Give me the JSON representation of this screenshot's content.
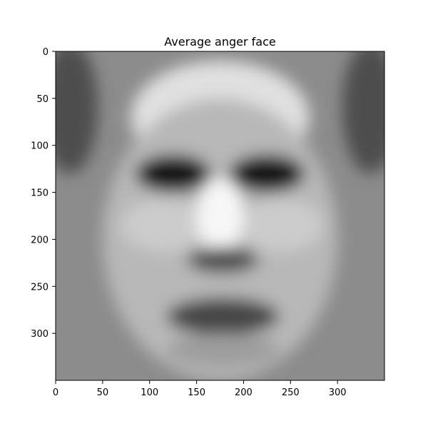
{
  "chart_data": {
    "type": "heatmap",
    "title": "Average anger face",
    "xlabel": "",
    "ylabel": "",
    "colormap": "gray",
    "xlim": [
      0,
      350
    ],
    "ylim": [
      350,
      0
    ],
    "x_ticks": [
      0,
      50,
      100,
      150,
      200,
      250,
      300
    ],
    "y_ticks": [
      0,
      50,
      100,
      150,
      200,
      250,
      300
    ],
    "grid": false,
    "image": {
      "width": 350,
      "height": 350,
      "background_intensity": 0.55,
      "features": [
        {
          "name": "forehead",
          "shape": "ellipse",
          "cx": 175,
          "cy": 70,
          "rx": 95,
          "ry": 60,
          "intensity": 0.88
        },
        {
          "name": "face",
          "shape": "ellipse",
          "cx": 175,
          "cy": 200,
          "rx": 125,
          "ry": 150,
          "intensity": 0.72
        },
        {
          "name": "left-cheek",
          "shape": "ellipse",
          "cx": 115,
          "cy": 185,
          "rx": 45,
          "ry": 28,
          "intensity": 0.8
        },
        {
          "name": "right-cheek",
          "shape": "ellipse",
          "cx": 240,
          "cy": 185,
          "rx": 45,
          "ry": 28,
          "intensity": 0.8
        },
        {
          "name": "left-eye",
          "shape": "ellipse",
          "cx": 125,
          "cy": 130,
          "rx": 40,
          "ry": 20,
          "intensity": 0.08
        },
        {
          "name": "right-eye",
          "shape": "ellipse",
          "cx": 225,
          "cy": 130,
          "rx": 40,
          "ry": 20,
          "intensity": 0.08
        },
        {
          "name": "nose",
          "shape": "ellipse",
          "cx": 175,
          "cy": 175,
          "rx": 25,
          "ry": 40,
          "intensity": 0.97
        },
        {
          "name": "nose-shadow",
          "shape": "ellipse",
          "cx": 178,
          "cy": 222,
          "rx": 38,
          "ry": 14,
          "intensity": 0.3
        },
        {
          "name": "mouth",
          "shape": "ellipse",
          "cx": 178,
          "cy": 282,
          "rx": 60,
          "ry": 20,
          "intensity": 0.28
        },
        {
          "name": "chin",
          "shape": "ellipse",
          "cx": 178,
          "cy": 318,
          "rx": 60,
          "ry": 18,
          "intensity": 0.62
        },
        {
          "name": "left-edge-shadow",
          "shape": "ellipse",
          "cx": 15,
          "cy": 60,
          "rx": 30,
          "ry": 70,
          "intensity": 0.3
        },
        {
          "name": "right-edge-shadow",
          "shape": "ellipse",
          "cx": 335,
          "cy": 60,
          "rx": 30,
          "ry": 70,
          "intensity": 0.3
        }
      ]
    }
  }
}
